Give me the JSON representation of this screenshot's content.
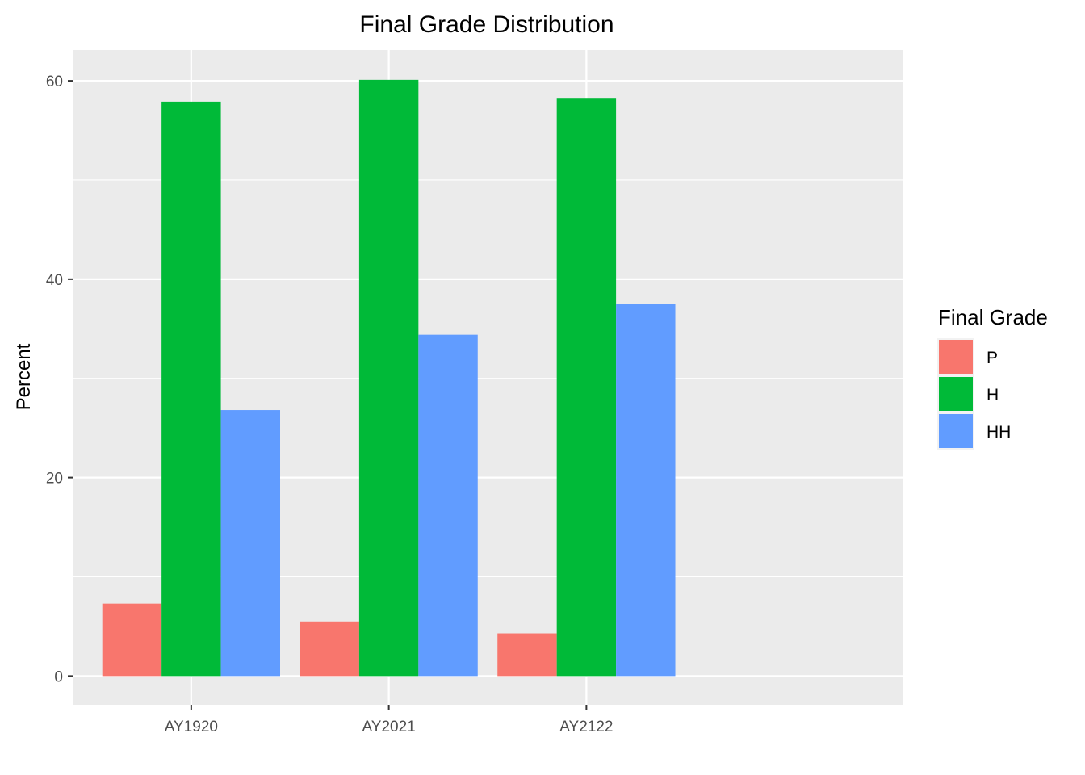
{
  "chart_data": {
    "type": "bar",
    "title": "Final Grade Distribution",
    "xlabel": "",
    "ylabel": "Percent",
    "categories": [
      "AY1920",
      "AY2021",
      "AY2122"
    ],
    "series": [
      {
        "name": "P",
        "values": [
          7.3,
          5.5,
          4.3
        ]
      },
      {
        "name": "H",
        "values": [
          57.9,
          60.1,
          58.2
        ]
      },
      {
        "name": "HH",
        "values": [
          26.8,
          34.4,
          37.5
        ]
      }
    ],
    "ylim": [
      -2.9,
      63.1
    ],
    "yticks": [
      0,
      20,
      40,
      60
    ],
    "yminor": [
      10,
      30,
      50
    ],
    "grid": true,
    "legend": {
      "title": "Final Grade",
      "position": "right"
    },
    "colors": {
      "P": "#F8766D",
      "H": "#00BA38",
      "HH": "#619CFF",
      "panel_bg": "#EBEBEB",
      "grid": "#FFFFFF"
    }
  }
}
